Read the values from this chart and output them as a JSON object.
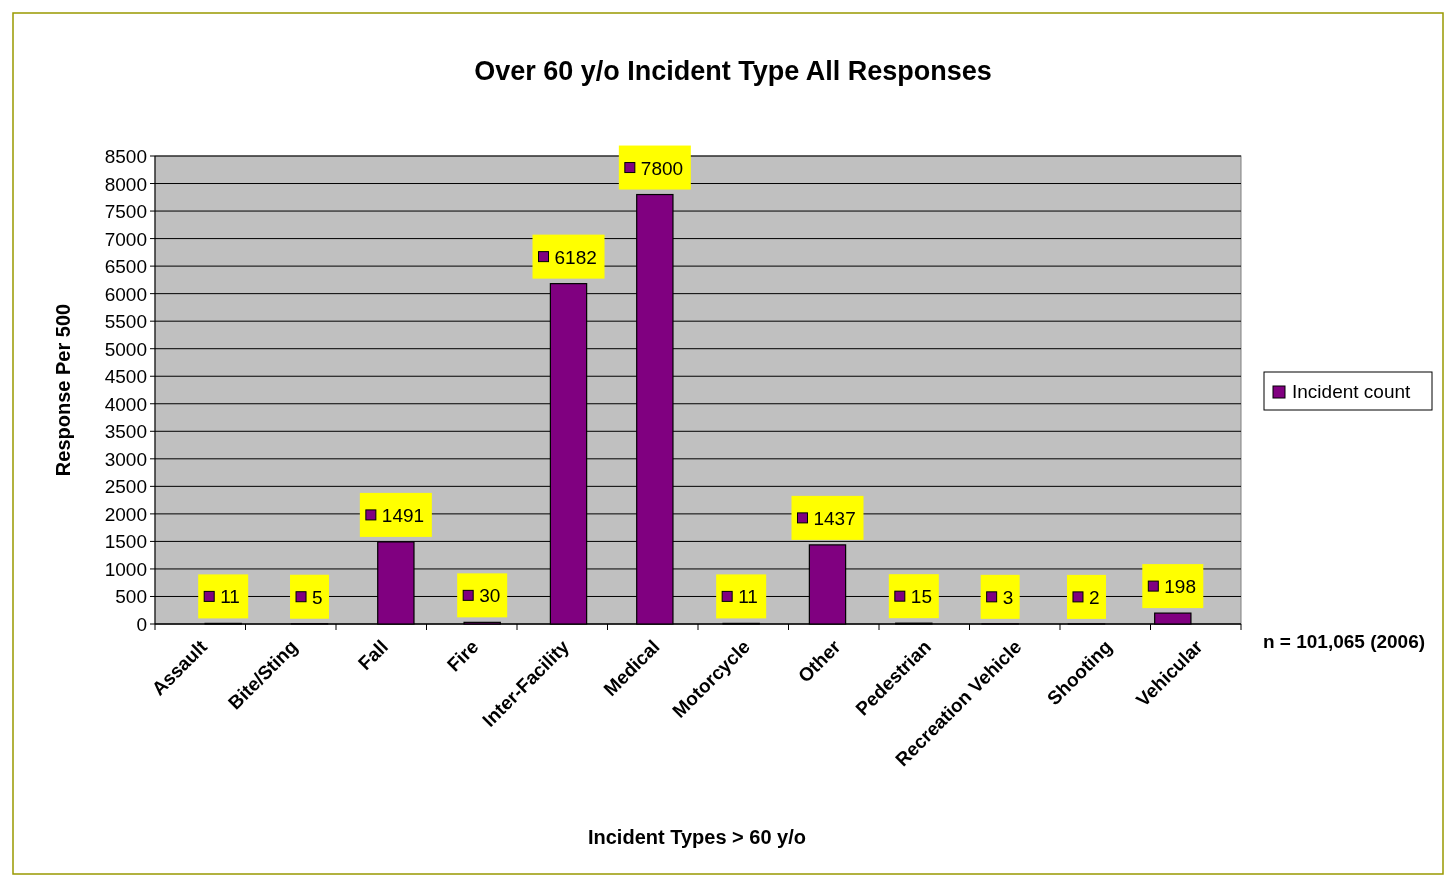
{
  "chart_data": {
    "type": "bar",
    "title": "Over 60 y/o Incident Type All Responses",
    "xlabel": "Incident Types > 60 y/o",
    "ylabel": "Response Per 500",
    "categories": [
      "Assault",
      "Bite/Sting",
      "Fall",
      "Fire",
      "Inter-Facility",
      "Medical",
      "Motorcycle",
      "Other",
      "Pedestrian",
      "Recreation Vehicle",
      "Shooting",
      "Vehicular"
    ],
    "series": [
      {
        "name": "Incident count",
        "color": "#800080",
        "values": [
          11,
          5,
          1491,
          30,
          6182,
          7800,
          11,
          1437,
          15,
          3,
          2,
          198
        ]
      }
    ],
    "ylim": [
      0,
      8500
    ],
    "yticks": [
      0,
      500,
      1000,
      1500,
      2000,
      2500,
      3000,
      3500,
      4000,
      4500,
      5000,
      5500,
      6000,
      6500,
      7000,
      7500,
      8000,
      8500
    ],
    "grid": "y",
    "legend": "right",
    "data_labels": true,
    "annotations": [
      "n = 101,065 (2006)"
    ]
  }
}
